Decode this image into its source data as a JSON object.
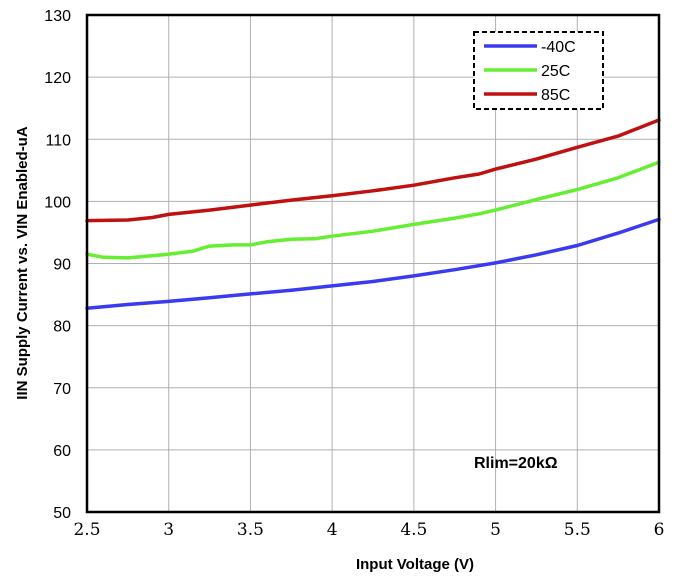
{
  "chart_data": {
    "type": "line",
    "title": "",
    "xlabel": "Input Voltage  (V)",
    "ylabel": "IIN Supply Current vs. VIN Enabled-uA",
    "xlim": [
      2.5,
      6
    ],
    "ylim": [
      50,
      130
    ],
    "x_ticks": [
      2.5,
      3,
      3.5,
      4,
      4.5,
      5,
      5.5,
      6
    ],
    "x_tick_labels": [
      "2.5",
      "3",
      "3.5",
      "4",
      "4.5",
      "5",
      "5.5",
      "6"
    ],
    "y_ticks": [
      50,
      60,
      70,
      80,
      90,
      100,
      110,
      120,
      130
    ],
    "y_tick_labels": [
      "50",
      "60",
      "70",
      "80",
      "90",
      "100",
      "110",
      "120",
      "130"
    ],
    "grid": true,
    "legend_position": "top-right",
    "annotation": "Rlim=20kΩ",
    "series": [
      {
        "name": "-40C",
        "color": "#3a3af0",
        "x": [
          2.5,
          2.75,
          3.0,
          3.25,
          3.5,
          3.75,
          4.0,
          4.25,
          4.5,
          4.75,
          5.0,
          5.25,
          5.5,
          5.75,
          6.0
        ],
        "y": [
          82.8,
          83.4,
          83.9,
          84.5,
          85.1,
          85.7,
          86.4,
          87.1,
          88.0,
          89.0,
          90.1,
          91.4,
          92.9,
          94.9,
          97.1
        ]
      },
      {
        "name": "25C",
        "color": "#66ee33",
        "x": [
          2.5,
          2.6,
          2.75,
          3.0,
          3.15,
          3.25,
          3.4,
          3.5,
          3.6,
          3.75,
          3.9,
          4.0,
          4.25,
          4.5,
          4.75,
          4.9,
          5.0,
          5.25,
          5.5,
          5.75,
          6.0
        ],
        "y": [
          91.5,
          91.0,
          90.9,
          91.5,
          92.0,
          92.8,
          93.0,
          93.0,
          93.5,
          93.9,
          94.0,
          94.4,
          95.2,
          96.3,
          97.3,
          98.0,
          98.6,
          100.3,
          101.9,
          103.8,
          106.3
        ]
      },
      {
        "name": "85C",
        "color": "#c01010",
        "x": [
          2.5,
          2.75,
          2.9,
          3.0,
          3.25,
          3.5,
          3.75,
          4.0,
          4.25,
          4.5,
          4.75,
          4.9,
          5.0,
          5.25,
          5.5,
          5.75,
          6.0
        ],
        "y": [
          96.9,
          97.0,
          97.4,
          97.9,
          98.6,
          99.4,
          100.2,
          100.9,
          101.7,
          102.6,
          103.8,
          104.4,
          105.2,
          106.8,
          108.7,
          110.5,
          113.1
        ]
      }
    ]
  }
}
